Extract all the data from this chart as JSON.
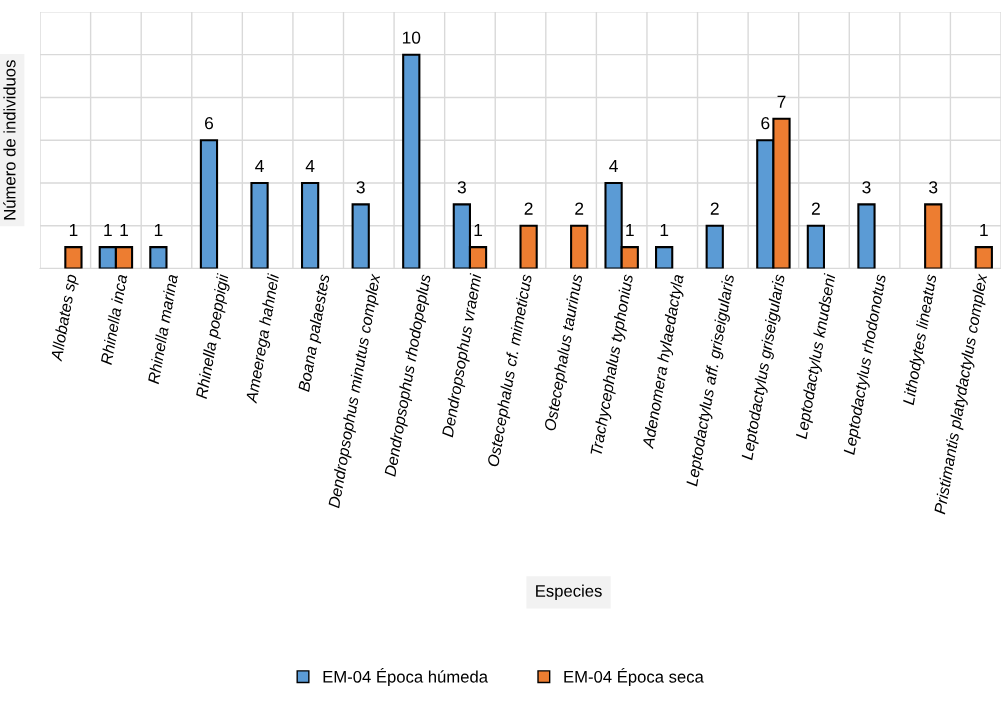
{
  "chart_data": {
    "type": "bar",
    "xlabel": "Especies",
    "ylabel": "Número de individuos",
    "categories": [
      "Allobates sp",
      "Rhinella inca",
      "Rhinella marina",
      "Rhinella poeppigii",
      "Ameerega hahneli",
      "Boana palaestes",
      "Dendropsophus minutus complex",
      "Dendropsophus rhodopeplus",
      "Dendropsophus vraemi",
      "Ostecephalus cf. mimeticus",
      "Ostecephalus taurinus",
      "Trachycephalus typhonius",
      "Adenomera hylaedactyla",
      "Leptodactylus aff. griseigularis",
      "Leptodactylus griseigularis",
      "Leptodactylus knudseni",
      "Leptodactylus rhodonotus",
      "Lithodytes lineatus",
      "Pristimantis platydactylus complex"
    ],
    "series": [
      {
        "name": "EM-04 Época húmeda",
        "color": "#5b9bd5",
        "values": [
          null,
          1,
          1,
          6,
          4,
          4,
          3,
          10,
          3,
          null,
          null,
          4,
          1,
          2,
          6,
          2,
          3,
          null,
          null
        ]
      },
      {
        "name": "EM-04 Época seca",
        "color": "#ed7d31",
        "values": [
          1,
          1,
          null,
          null,
          null,
          null,
          null,
          null,
          1,
          2,
          2,
          1,
          null,
          null,
          7,
          null,
          null,
          3,
          1
        ]
      }
    ],
    "ylim": [
      0,
      12
    ],
    "yticks": [
      {
        "value": 0,
        "label": null
      },
      {
        "value": 2,
        "label": null
      },
      {
        "value": 4,
        "label": null
      },
      {
        "value": 6,
        "label": null
      },
      {
        "value": 8,
        "label": null
      },
      {
        "value": 10,
        "label": null
      },
      {
        "value": 12,
        "label": null
      }
    ],
    "tick_labels": "x",
    "grid": true,
    "data_labels": true,
    "legend": "bottom"
  }
}
